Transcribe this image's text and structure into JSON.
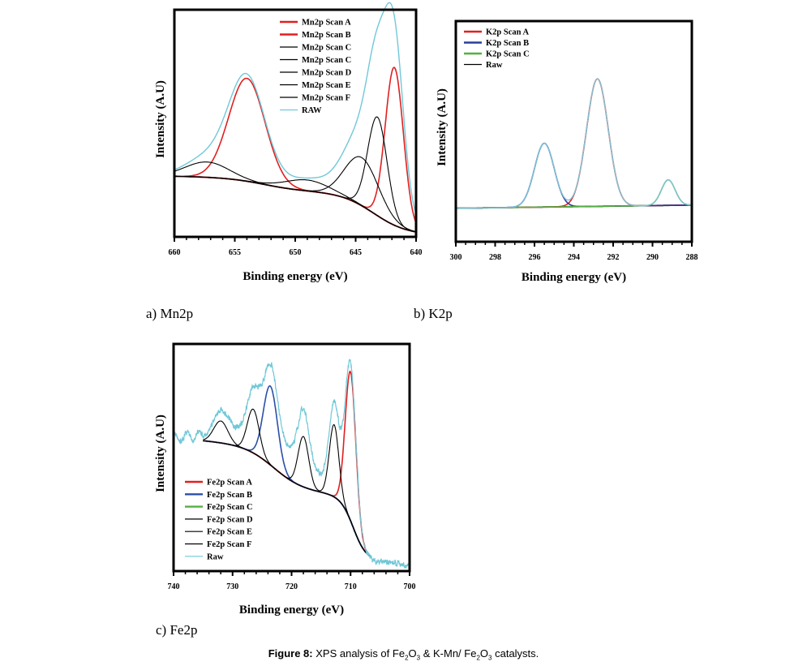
{
  "caption": {
    "prefix": "Figure 8:",
    "text_parts": [
      "XPS analysis of Fe",
      "2",
      "O",
      "3",
      " & K-Mn/ Fe",
      "2",
      "O",
      "3",
      " catalysts."
    ]
  },
  "chart_data": [
    {
      "id": "mn2p",
      "type": "line",
      "panel_label": "a) Mn2p",
      "xlabel": "Binding energy (eV)",
      "ylabel": "Intensity (A.U)",
      "xlim": [
        660,
        640
      ],
      "xticks": [
        660,
        655,
        650,
        645,
        640
      ],
      "ylim": [
        0,
        1.0
      ],
      "legend_position": "top-center",
      "background": {
        "type": "shirley",
        "start": 0.27,
        "end": 0.0,
        "center": 642.5,
        "width": 1.6,
        "plateau": 0.18
      },
      "series": [
        {
          "name": "Mn2p Scan A",
          "color": "#e02020",
          "peaks": [
            {
              "center": 654.0,
              "height": 0.47,
              "width": 1.5
            }
          ]
        },
        {
          "name": "Mn2p Scan B",
          "color": "#e02020",
          "peaks": [
            {
              "center": 641.8,
              "height": 0.72,
              "width": 0.75
            }
          ]
        },
        {
          "name": "Mn2p Scan C",
          "color": "#000000",
          "peaks": [
            {
              "center": 657.3,
              "height": 0.07,
              "width": 1.8
            }
          ]
        },
        {
          "name": "Mn2p Scan C",
          "color": "#000000",
          "peaks": [
            {
              "center": 649.0,
              "height": 0.05,
              "width": 1.8
            }
          ]
        },
        {
          "name": "Mn2p Scan D",
          "color": "#000000",
          "peaks": [
            {
              "center": 644.5,
              "height": 0.22,
              "width": 1.4
            }
          ]
        },
        {
          "name": "Mn2p Scan E",
          "color": "#000000",
          "peaks": [
            {
              "center": 643.2,
              "height": 0.45,
              "width": 0.8
            }
          ]
        },
        {
          "name": "Mn2p Scan F",
          "color": "#000000",
          "peaks": []
        },
        {
          "name": "RAW",
          "color": "#70c8d8",
          "raw": true
        }
      ]
    },
    {
      "id": "k2p",
      "type": "line",
      "panel_label": "b) K2p",
      "xlabel": "Binding energy (eV)",
      "ylabel": "Intensity (A.U)",
      "xlim": [
        300,
        288
      ],
      "xticks": [
        300,
        298,
        296,
        294,
        292,
        290,
        288
      ],
      "ylim": [
        0,
        1.0
      ],
      "legend_position": "top-left",
      "background": {
        "type": "linear",
        "start": 0.15,
        "end": 0.165
      },
      "series": [
        {
          "name": "K2p Scan A",
          "color": "#e02020",
          "peaks": [
            {
              "center": 292.8,
              "height": 0.6,
              "width": 0.55
            }
          ]
        },
        {
          "name": "K2p Scan B",
          "color": "#2b3f9a",
          "peaks": [
            {
              "center": 295.5,
              "height": 0.3,
              "width": 0.5
            }
          ]
        },
        {
          "name": "K2p Scan C",
          "color": "#55b040",
          "peaks": [
            {
              "center": 289.2,
              "height": 0.12,
              "width": 0.35
            }
          ]
        },
        {
          "name": "Raw",
          "color": "#000000",
          "raw": true
        }
      ]
    },
    {
      "id": "fe2p",
      "type": "line",
      "panel_label": "c) Fe2p",
      "xlabel": "Binding energy (eV)",
      "ylabel": "Intensity (A.U)",
      "xlim": [
        740,
        700
      ],
      "xticks": [
        740,
        730,
        720,
        710,
        700
      ],
      "ylim": [
        0,
        1.0
      ],
      "legend_position": "bottom-left",
      "background": {
        "type": "fe",
        "start": 0.6,
        "end": 0.04,
        "edge_end": 706.5
      },
      "series": [
        {
          "name": "Fe2p Scan A",
          "color": "#e02020",
          "peaks": [
            {
              "center": 710.0,
              "height": 0.68,
              "width": 0.9
            }
          ]
        },
        {
          "name": "Fe2p Scan B",
          "color": "#2b4fa8",
          "peaks": [
            {
              "center": 723.6,
              "height": 0.36,
              "width": 1.2
            }
          ]
        },
        {
          "name": "Fe2p Scan C",
          "color": "#55b040",
          "peaks": []
        },
        {
          "name": "Fe2p Scan D",
          "color": "#000000",
          "peaks": [
            {
              "center": 732.0,
              "height": 0.1,
              "width": 1.2
            }
          ]
        },
        {
          "name": "Fe2p Scan E",
          "color": "#000000",
          "peaks": [
            {
              "center": 726.5,
              "height": 0.2,
              "width": 1.0
            }
          ]
        },
        {
          "name": "Fe2p Scan F",
          "color": "#000000",
          "peaks": [
            {
              "center": 718.0,
              "height": 0.23,
              "width": 0.9
            },
            {
              "center": 712.8,
              "height": 0.33,
              "width": 0.8
            }
          ]
        },
        {
          "name": "Raw",
          "color": "#70c8d8",
          "raw": true,
          "noisy": true
        }
      ]
    }
  ]
}
